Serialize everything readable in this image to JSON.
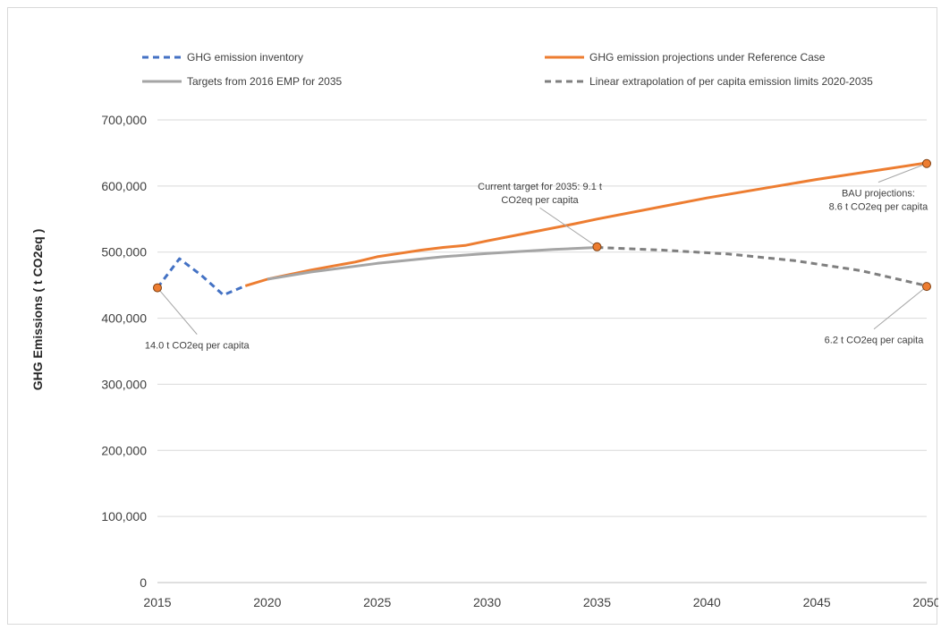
{
  "chart_data": {
    "type": "line",
    "title": "",
    "xlabel": "",
    "ylabel": "GHG Emissions ( t CO2eq )",
    "xlim": [
      2015,
      2050
    ],
    "ylim": [
      0,
      700000
    ],
    "x_ticks": [
      2015,
      2020,
      2025,
      2030,
      2035,
      2040,
      2045,
      2050
    ],
    "y_ticks": [
      0,
      100000,
      200000,
      300000,
      400000,
      500000,
      600000,
      700000
    ],
    "y_tick_labels": [
      "0",
      "100,000",
      "200,000",
      "300,000",
      "400,000",
      "500,000",
      "600,000",
      "700,000"
    ],
    "grid": "horizontal",
    "legend_placement": "top",
    "series": [
      {
        "name": "GHG emission inventory",
        "color": "#4472C4",
        "dash": "dashed",
        "points": [
          [
            2015,
            446000
          ],
          [
            2016,
            490000
          ],
          [
            2017,
            465000
          ],
          [
            2018,
            435000
          ],
          [
            2019,
            449000
          ]
        ]
      },
      {
        "name": "GHG emission projections under Reference Case",
        "color": "#ED7D31",
        "dash": "solid",
        "points": [
          [
            2019,
            449000
          ],
          [
            2020,
            459000
          ],
          [
            2021,
            466000
          ],
          [
            2022,
            473000
          ],
          [
            2023,
            479000
          ],
          [
            2024,
            485000
          ],
          [
            2025,
            493000
          ],
          [
            2026,
            498000
          ],
          [
            2027,
            503000
          ],
          [
            2028,
            507000
          ],
          [
            2029,
            510000
          ],
          [
            2030,
            517000
          ],
          [
            2032,
            530000
          ],
          [
            2034,
            543000
          ],
          [
            2035,
            550000
          ],
          [
            2040,
            582000
          ],
          [
            2045,
            610000
          ],
          [
            2050,
            635000
          ]
        ]
      },
      {
        "name": "Targets from 2016 EMP for 2035",
        "color": "#A5A5A5",
        "dash": "solid",
        "points": [
          [
            2020,
            459000
          ],
          [
            2022,
            470000
          ],
          [
            2025,
            483000
          ],
          [
            2028,
            493000
          ],
          [
            2030,
            498000
          ],
          [
            2033,
            504000
          ],
          [
            2035,
            507000
          ]
        ]
      },
      {
        "name": "Linear extrapolation of per capita emission limits 2020-2035",
        "color": "#7F7F7F",
        "dash": "dashed",
        "points": [
          [
            2035,
            507000
          ],
          [
            2038,
            503000
          ],
          [
            2041,
            497000
          ],
          [
            2044,
            487000
          ],
          [
            2047,
            472000
          ],
          [
            2050,
            449000
          ]
        ]
      }
    ],
    "markers": [
      {
        "x": 2015,
        "y": 446000,
        "color": "#ED7D31"
      },
      {
        "x": 2035,
        "y": 508000,
        "color": "#ED7D31"
      },
      {
        "x": 2050,
        "y": 634000,
        "color": "#ED7D31"
      },
      {
        "x": 2050,
        "y": 448000,
        "color": "#ED7D31"
      }
    ],
    "annotations": [
      {
        "lines": [
          "14.0 t CO2eq per capita"
        ],
        "anchor": [
          2015,
          446000
        ],
        "label_at": [
          2016.8,
          360000
        ],
        "align": "middle"
      },
      {
        "lines": [
          "Current target for 2035: 9.1 t",
          "CO2eq per capita"
        ],
        "anchor": [
          2035,
          508000
        ],
        "label_at": [
          2032.4,
          590000
        ],
        "align": "middle"
      },
      {
        "lines": [
          "BAU projections:",
          "8.6 t CO2eq per capita"
        ],
        "anchor": [
          2050,
          634000
        ],
        "label_at": [
          2047.8,
          580000
        ],
        "align": "middle"
      },
      {
        "lines": [
          "6.2 t CO2eq per capita"
        ],
        "anchor": [
          2050,
          448000
        ],
        "label_at": [
          2047.6,
          368000
        ],
        "align": "middle"
      }
    ]
  }
}
